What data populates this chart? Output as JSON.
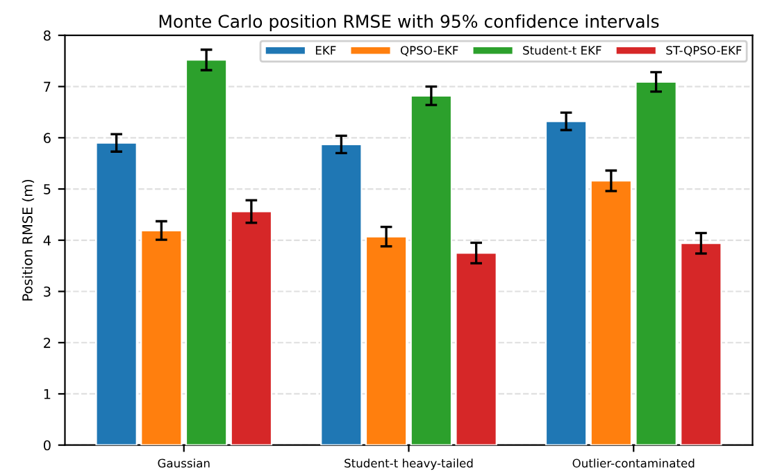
{
  "chart_data": {
    "type": "bar",
    "title": "Monte Carlo position RMSE with 95% confidence intervals",
    "ylabel": "Position RMSE (m)",
    "categories": [
      "Gaussian",
      "Student-t heavy-tailed",
      "Outlier-contaminated"
    ],
    "series": [
      {
        "name": "EKF",
        "color": "#1f77b4",
        "values": [
          5.9,
          5.87,
          6.32
        ],
        "errors": [
          0.17,
          0.17,
          0.17
        ]
      },
      {
        "name": "QPSO-EKF",
        "color": "#ff7f0e",
        "values": [
          4.19,
          4.07,
          5.16
        ],
        "errors": [
          0.18,
          0.19,
          0.2
        ]
      },
      {
        "name": "Student-t EKF",
        "color": "#2ca02c",
        "values": [
          7.52,
          6.82,
          7.09
        ],
        "errors": [
          0.2,
          0.18,
          0.19
        ]
      },
      {
        "name": "ST-QPSO-EKF",
        "color": "#d62728",
        "values": [
          4.56,
          3.75,
          3.94
        ],
        "errors": [
          0.22,
          0.2,
          0.2
        ]
      }
    ],
    "ylim": [
      0,
      8
    ],
    "yticks": [
      0,
      1,
      2,
      3,
      4,
      5,
      6,
      7,
      8
    ],
    "grid": "y",
    "legend": "top right"
  }
}
